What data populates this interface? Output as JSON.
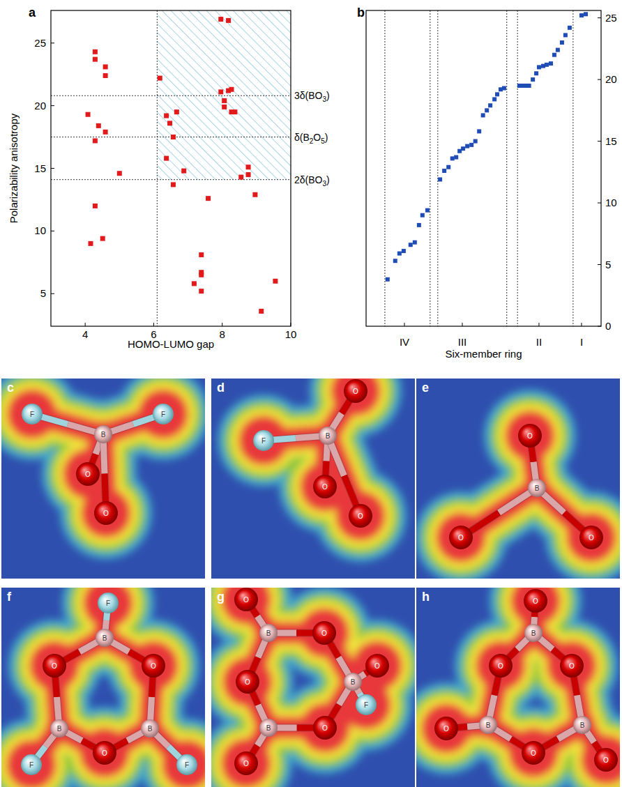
{
  "chart_data": [
    {
      "panel": "a",
      "type": "scatter",
      "xlabel": "HOMO-LUMO gap",
      "ylabel": "Polarizability anisotropy",
      "xlim": [
        3,
        10
      ],
      "ylim": [
        2.4,
        27.6
      ],
      "xticks": [
        4,
        6,
        8,
        10
      ],
      "yticks": [
        5,
        10,
        15,
        20,
        25
      ],
      "color": "#e31a1c",
      "marker": "square",
      "x": [
        4.29,
        4.29,
        4.59,
        4.59,
        4.08,
        4.39,
        4.59,
        4.29,
        5.0,
        4.29,
        4.16,
        4.51,
        6.18,
        7.96,
        8.18,
        7.96,
        8.06,
        8.06,
        8.18,
        8.27,
        8.27,
        8.37,
        6.37,
        6.47,
        6.57,
        6.67,
        6.37,
        6.88,
        6.57,
        7.59,
        8.76,
        8.76,
        8.55,
        8.96,
        7.39,
        7.39,
        7.39,
        7.39,
        7.18,
        9.14,
        9.55
      ],
      "values": [
        24.3,
        23.7,
        23.1,
        22.4,
        19.3,
        18.4,
        17.9,
        17.2,
        14.6,
        12.0,
        9.0,
        9.4,
        22.2,
        26.9,
        26.8,
        21.1,
        20.4,
        19.9,
        21.2,
        21.3,
        19.5,
        19.5,
        19.2,
        18.6,
        17.5,
        19.5,
        15.8,
        14.8,
        13.7,
        12.6,
        15.1,
        14.5,
        14.3,
        12.9,
        8.1,
        6.7,
        6.5,
        5.2,
        5.8,
        3.6,
        6.0
      ],
      "hlines": [
        {
          "value": 20.8,
          "label": "3δ(BO3)"
        },
        {
          "value": 17.5,
          "label": "δ(B2O5)"
        },
        {
          "value": 14.1,
          "label": "2δ(BO3)"
        }
      ],
      "vlines": [
        6.1
      ],
      "shaded_region": {
        "x": [
          6.1,
          10
        ],
        "y": [
          14.1,
          27.6
        ]
      }
    },
    {
      "panel": "b",
      "type": "scatter",
      "xlabel": "Six-member ring",
      "xlim": [
        0,
        61.3
      ],
      "ylim": [
        0,
        25.6
      ],
      "yticks": [
        0,
        5,
        10,
        15,
        20,
        25
      ],
      "tick_labels": "y",
      "color": "#1f4db5",
      "marker": "square",
      "x": [
        5.6,
        7.6,
        8.7,
        9.8,
        11.6,
        12.7,
        13.8,
        14.7,
        16.0,
        19.3,
        20.4,
        21.5,
        22.5,
        23.5,
        24.4,
        25.3,
        26.4,
        27.5,
        28.5,
        29.5,
        30.5,
        31.5,
        32.4,
        33.5,
        34.2,
        35.1,
        36.0,
        40.0,
        40.9,
        41.8,
        42.5,
        43.5,
        44.4,
        45.1,
        46.2,
        47.1,
        48.2,
        49.1,
        50.0,
        51.1,
        52.0,
        53.1,
        56.2,
        57.3
      ],
      "values": [
        3.8,
        5.3,
        5.9,
        6.1,
        6.6,
        6.8,
        8.2,
        9.0,
        9.4,
        11.9,
        12.6,
        12.9,
        13.6,
        13.7,
        14.2,
        14.4,
        14.6,
        14.7,
        15.0,
        15.8,
        17.1,
        17.5,
        17.9,
        18.4,
        18.8,
        19.2,
        19.3,
        19.5,
        19.5,
        19.5,
        19.5,
        20.0,
        20.5,
        21.0,
        21.1,
        21.2,
        21.3,
        22.0,
        22.4,
        23.0,
        23.6,
        24.2,
        25.2,
        25.3
      ],
      "groups": [
        {
          "label": "IV",
          "x": 10.0
        },
        {
          "label": "III",
          "x": 25.1
        },
        {
          "label": "II",
          "x": 45.1
        },
        {
          "label": "I",
          "x": 56.2
        }
      ],
      "group_boundaries": [
        4.9,
        16.7,
        18.7,
        36.7,
        39.5,
        54.0
      ]
    }
  ],
  "structures": [
    {
      "panel": "c",
      "atoms": [
        "F",
        "F",
        "B",
        "O",
        "O"
      ]
    },
    {
      "panel": "d",
      "atoms": [
        "O",
        "F",
        "B",
        "O",
        "O"
      ]
    },
    {
      "panel": "e",
      "atoms": [
        "O",
        "B",
        "O",
        "O"
      ]
    },
    {
      "panel": "f",
      "atoms": [
        "F",
        "B",
        "O",
        "O",
        "B",
        "B",
        "O",
        "F",
        "F"
      ]
    },
    {
      "panel": "g",
      "atoms": [
        "O",
        "B",
        "O",
        "B",
        "F",
        "O",
        "O",
        "B",
        "O",
        "O"
      ]
    },
    {
      "panel": "h",
      "atoms": [
        "O",
        "B",
        "O",
        "O",
        "B",
        "B",
        "O",
        "O",
        "O"
      ]
    }
  ]
}
